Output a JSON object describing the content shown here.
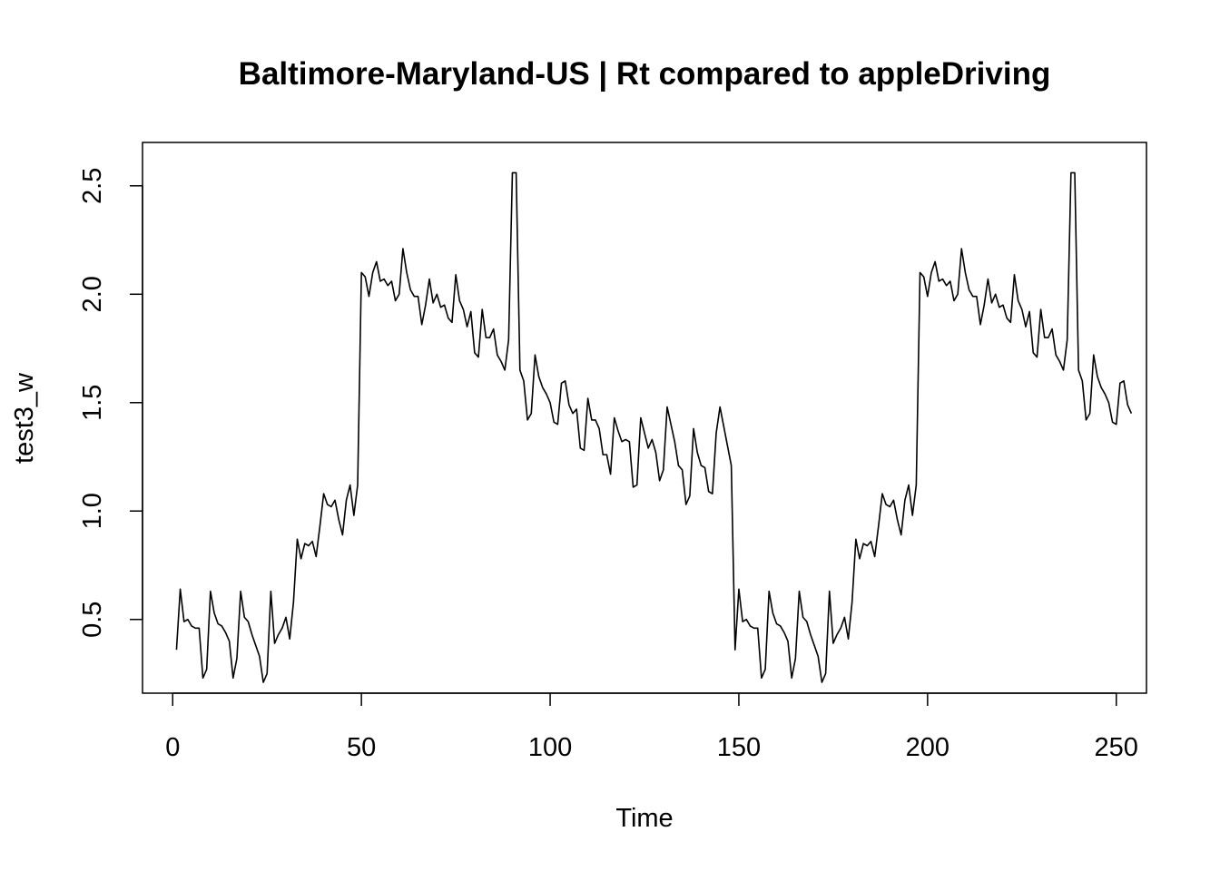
{
  "chart_data": {
    "type": "line",
    "title": "Baltimore-Maryland-US | Rt compared to appleDriving",
    "xlabel": "Time",
    "ylabel": "test3_w",
    "xlim": [
      -8,
      258
    ],
    "ylim": [
      0.16,
      2.7
    ],
    "x_ticks": [
      0,
      50,
      100,
      150,
      200,
      250
    ],
    "x_tick_labels": [
      "0",
      "50",
      "100",
      "150",
      "200",
      "250"
    ],
    "y_ticks": [
      0.5,
      1.0,
      1.5,
      2.0,
      2.5
    ],
    "y_tick_labels": [
      "0.5",
      "1.0",
      "1.5",
      "2.0",
      "2.5"
    ],
    "grid": false,
    "legend": "none",
    "line_color": "#000000",
    "series": [
      {
        "x_start": 1,
        "x_step": 1,
        "values": [
          0.36,
          0.64,
          0.49,
          0.5,
          0.47,
          0.46,
          0.46,
          0.23,
          0.27,
          0.63,
          0.53,
          0.48,
          0.47,
          0.44,
          0.4,
          0.23,
          0.32,
          0.63,
          0.51,
          0.49,
          0.43,
          0.38,
          0.33,
          0.21,
          0.25,
          0.63,
          0.39,
          0.43,
          0.46,
          0.51,
          0.41,
          0.58,
          0.87,
          0.78,
          0.85,
          0.84,
          0.86,
          0.79,
          0.93,
          1.08,
          1.03,
          1.02,
          1.05,
          0.96,
          0.89,
          1.05,
          1.12,
          0.98,
          1.12,
          2.1,
          2.08,
          1.99,
          2.1,
          2.15,
          2.06,
          2.07,
          2.04,
          2.06,
          1.97,
          2.0,
          2.21,
          2.1,
          2.02,
          1.99,
          1.99,
          1.86,
          1.95,
          2.07,
          1.96,
          2.0,
          1.94,
          1.95,
          1.89,
          1.87,
          2.09,
          1.97,
          1.93,
          1.85,
          1.92,
          1.73,
          1.71,
          1.93,
          1.8,
          1.8,
          1.84,
          1.72,
          1.69,
          1.65,
          1.79,
          2.56,
          2.56,
          1.65,
          1.6,
          1.42,
          1.45,
          1.72,
          1.62,
          1.57,
          1.54,
          1.5,
          1.41,
          1.4,
          1.59,
          1.6,
          1.49,
          1.45,
          1.47,
          1.29,
          1.28,
          1.52,
          1.42,
          1.42,
          1.38,
          1.26,
          1.26,
          1.17,
          1.43,
          1.37,
          1.32,
          1.33,
          1.32,
          1.11,
          1.12,
          1.43,
          1.36,
          1.29,
          1.33,
          1.27,
          1.14,
          1.19,
          1.48,
          1.4,
          1.32,
          1.21,
          1.19,
          1.03,
          1.07,
          1.38,
          1.27,
          1.21,
          1.2,
          1.09,
          1.08,
          1.36,
          1.48,
          1.39,
          1.3,
          1.21,
          0.36,
          0.64,
          0.49,
          0.5,
          0.47,
          0.46,
          0.46,
          0.23,
          0.27,
          0.63,
          0.53,
          0.48,
          0.47,
          0.44,
          0.4,
          0.23,
          0.32,
          0.63,
          0.51,
          0.49,
          0.43,
          0.38,
          0.33,
          0.21,
          0.25,
          0.63,
          0.39,
          0.43,
          0.46,
          0.51,
          0.41,
          0.58,
          0.87,
          0.78,
          0.85,
          0.84,
          0.86,
          0.79,
          0.93,
          1.08,
          1.03,
          1.02,
          1.05,
          0.96,
          0.89,
          1.05,
          1.12,
          0.98,
          1.12,
          2.1,
          2.08,
          1.99,
          2.1,
          2.15,
          2.06,
          2.07,
          2.04,
          2.06,
          1.97,
          2.0,
          2.21,
          2.1,
          2.02,
          1.99,
          1.99,
          1.86,
          1.95,
          2.07,
          1.96,
          2.0,
          1.94,
          1.95,
          1.89,
          1.87,
          2.09,
          1.97,
          1.93,
          1.85,
          1.92,
          1.73,
          1.71,
          1.93,
          1.8,
          1.8,
          1.84,
          1.72,
          1.69,
          1.65,
          1.79,
          2.56,
          2.56,
          1.65,
          1.6,
          1.42,
          1.45,
          1.72,
          1.62,
          1.57,
          1.54,
          1.5,
          1.41,
          1.4,
          1.59,
          1.6,
          1.49,
          1.45
        ]
      }
    ]
  }
}
